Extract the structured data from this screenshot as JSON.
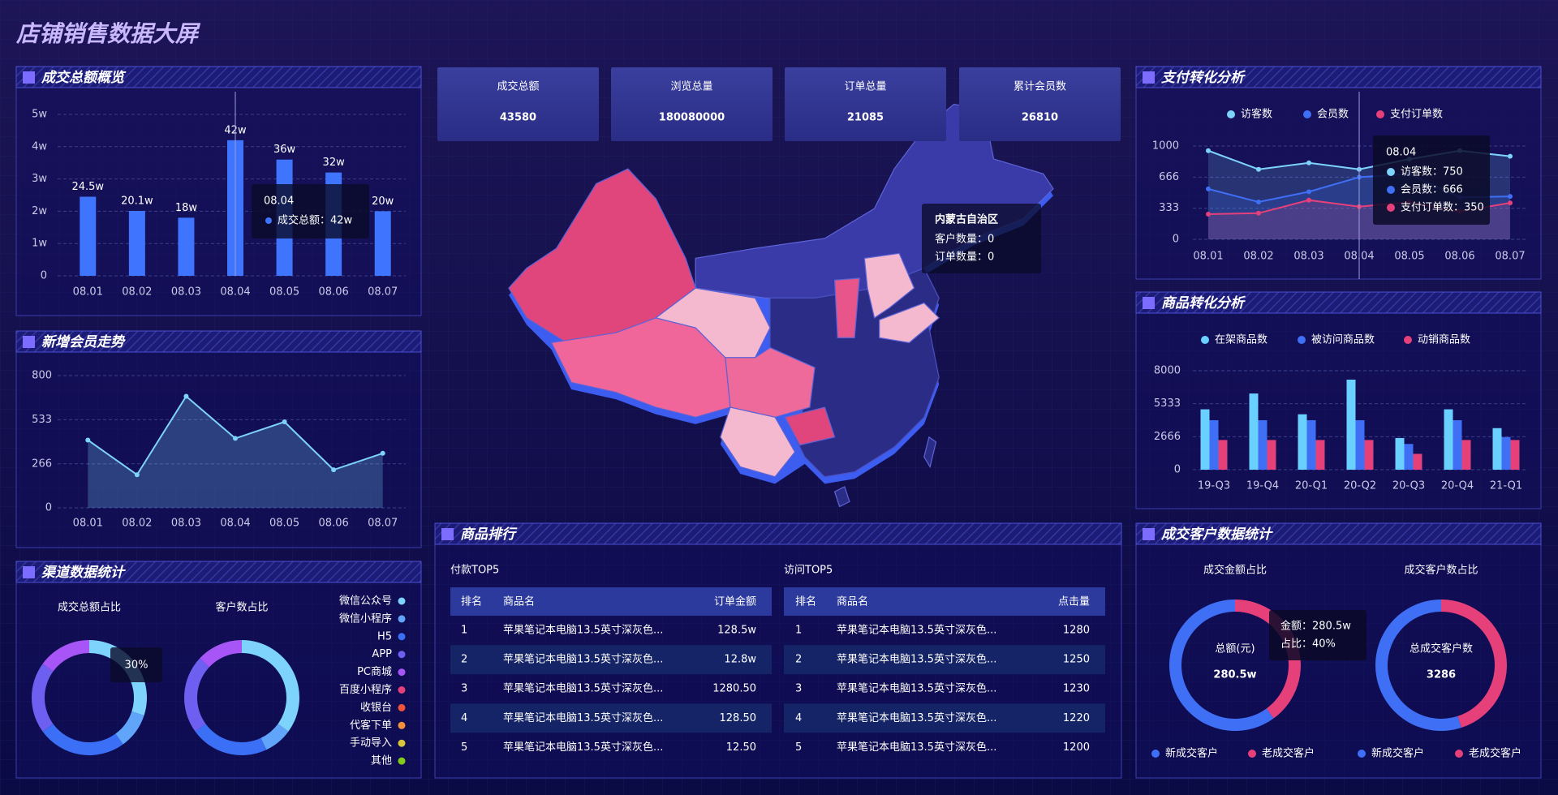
{
  "header": {
    "title": "店铺销售数据大屏"
  },
  "kpis": [
    {
      "label": "成交总额",
      "value": 43580
    },
    {
      "label": "浏览总量",
      "value": 180080000
    },
    {
      "label": "订单总量",
      "value": 21085
    },
    {
      "label": "累计会员数",
      "value": 26810
    }
  ],
  "map": {
    "tooltip": {
      "title": "内蒙古自治区",
      "lines": [
        "客户数量：0",
        "订单数量：0"
      ]
    }
  },
  "ranking": {
    "title": "商品排行",
    "tables": [
      {
        "title": "付款TOP5",
        "columns": [
          "排名",
          "商品名",
          "订单金额"
        ],
        "rows": [
          [
            1,
            "苹果笔记本电脑13.5英寸深灰色...",
            "128.5w"
          ],
          [
            2,
            "苹果笔记本电脑13.5英寸深灰色...",
            "12.8w"
          ],
          [
            3,
            "苹果笔记本电脑13.5英寸深灰色...",
            "1280.50"
          ],
          [
            4,
            "苹果笔记本电脑13.5英寸深灰色...",
            "128.50"
          ],
          [
            5,
            "苹果笔记本电脑13.5英寸深灰色...",
            "12.50"
          ]
        ]
      },
      {
        "title": "访问TOP5",
        "columns": [
          "排名",
          "商品名",
          "点击量"
        ],
        "rows": [
          [
            1,
            "苹果笔记本电脑13.5英寸深灰色...",
            1280
          ],
          [
            2,
            "苹果笔记本电脑13.5英寸深灰色...",
            1250
          ],
          [
            3,
            "苹果笔记本电脑13.5英寸深灰色...",
            1230
          ],
          [
            4,
            "苹果笔记本电脑13.5英寸深灰色...",
            1220
          ],
          [
            5,
            "苹果笔记本电脑13.5英寸深灰色...",
            1200
          ]
        ]
      }
    ]
  },
  "chart_data": [
    {
      "type": "bar",
      "title": "成交总额概览",
      "categories": [
        "08.01",
        "08.02",
        "08.03",
        "08.04",
        "08.05",
        "08.06",
        "08.07"
      ],
      "values": [
        24.5,
        20.1,
        18,
        42,
        36,
        32,
        20
      ],
      "value_labels": [
        "24.5w",
        "20.1w",
        "18w",
        "42w",
        "36w",
        "32w",
        "20w"
      ],
      "color": "#3f74ff",
      "ylim": [
        0,
        50
      ],
      "yticks": [
        0,
        {
          "value": 10,
          "label": "1w"
        },
        {
          "value": 20,
          "label": "2w"
        },
        {
          "value": 30,
          "label": "3w"
        },
        {
          "value": 40,
          "label": "4w"
        },
        {
          "value": 50,
          "label": "5w"
        }
      ],
      "grid": true,
      "tooltip": {
        "title": "08.04",
        "text": "成交总额：42w"
      }
    },
    {
      "type": "line",
      "title": "新增会员走势",
      "categories": [
        "08.01",
        "08.02",
        "08.03",
        "08.04",
        "08.05",
        "08.06",
        "08.07"
      ],
      "values": [
        410,
        200,
        675,
        420,
        520,
        230,
        330
      ],
      "color": "#7dd3fc",
      "area": true,
      "ylim": [
        0,
        800
      ],
      "yticks": [
        0,
        266,
        533,
        800
      ],
      "grid": true
    },
    {
      "type": "pie",
      "title": "渠道数据统计",
      "categories": [
        "微信公众号",
        "微信小程序",
        "H5",
        "APP",
        "PC商城",
        "百度小程序",
        "收银台",
        "代客下单",
        "手动导入",
        "其他"
      ],
      "colors": [
        "#7dd3fc",
        "#60a5fa",
        "#3b6ff5",
        "#6d5ff0",
        "#a855f7",
        "#e5407a",
        "#f0523a",
        "#f5913a",
        "#d9c73a",
        "#84cc16"
      ],
      "series": [
        {
          "name": "成交总额占比",
          "values": [
            30,
            10,
            25,
            20,
            15,
            0,
            0,
            0,
            0,
            0
          ],
          "tooltip": "30%"
        },
        {
          "name": "客户数占比",
          "values": [
            35,
            8,
            22,
            22,
            13,
            0,
            0,
            0,
            0,
            0
          ]
        }
      ]
    },
    {
      "type": "line",
      "title": "支付转化分析",
      "categories": [
        "08.01",
        "08.02",
        "08.03",
        "08.04",
        "08.05",
        "08.06",
        "08.07"
      ],
      "series": [
        {
          "name": "访客数",
          "color": "#7dd3fc",
          "values": [
            950,
            750,
            820,
            750,
            860,
            950,
            890
          ]
        },
        {
          "name": "会员数",
          "color": "#3f6ff5",
          "values": [
            540,
            400,
            510,
            666,
            700,
            450,
            460
          ]
        },
        {
          "name": "支付订单数",
          "color": "#e5407a",
          "values": [
            270,
            280,
            420,
            350,
            400,
            300,
            390
          ]
        }
      ],
      "area": true,
      "ylim": [
        0,
        1000
      ],
      "yticks": [
        0,
        333,
        666,
        1000
      ],
      "grid": true,
      "tooltip": {
        "title": "08.04",
        "lines": [
          "访客数：750",
          "会员数：666",
          "支付订单数：350"
        ]
      }
    },
    {
      "type": "bar",
      "title": "商品转化分析",
      "categories": [
        "19-Q3",
        "19-Q4",
        "20-Q1",
        "20-Q2",
        "20-Q3",
        "20-Q4",
        "21-Q1"
      ],
      "series": [
        {
          "name": "在架商品数",
          "color": "#6ad0ff",
          "values": [
            4880,
            6160,
            4480,
            7280,
            2560,
            4880,
            3360
          ]
        },
        {
          "name": "被访问商品数",
          "color": "#3f6ff5",
          "values": [
            4000,
            4000,
            4000,
            4000,
            2080,
            4000,
            2640
          ]
        },
        {
          "name": "动销商品数",
          "color": "#e5407a",
          "values": [
            2400,
            2400,
            2400,
            2400,
            1280,
            2400,
            2400
          ]
        }
      ],
      "ylim": [
        0,
        8000
      ],
      "yticks": [
        0,
        2666,
        5333,
        8000
      ],
      "grid": true
    },
    {
      "type": "pie",
      "title": "成交客户数据统计",
      "categories": [
        "新成交客户",
        "老成交客户"
      ],
      "colors": [
        "#3f6ff5",
        "#e5407a"
      ],
      "series": [
        {
          "name": "成交金额占比",
          "values": [
            60,
            40
          ],
          "center_label": "总额(元)",
          "center_value": "280.5w",
          "tooltip": [
            "金额：280.5w",
            "占比：40%"
          ]
        },
        {
          "name": "成交客户数占比",
          "values": [
            55,
            45
          ],
          "center_label": "总成交客户数",
          "center_value": 3286
        }
      ]
    }
  ]
}
